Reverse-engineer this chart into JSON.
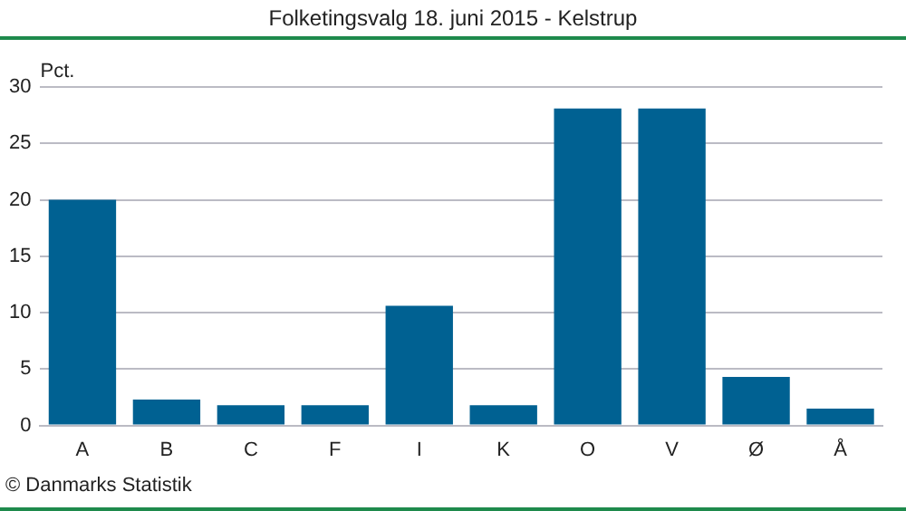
{
  "chart_data": {
    "type": "bar",
    "title": "Folketingsvalg 18. juni 2015 - Kelstrup",
    "ylabel": "Pct.",
    "categories": [
      "A",
      "B",
      "C",
      "F",
      "I",
      "K",
      "O",
      "V",
      "Ø",
      "Å"
    ],
    "values": [
      20,
      2.3,
      1.8,
      1.8,
      10.6,
      1.8,
      28.1,
      28.1,
      4.3,
      1.5
    ],
    "color": "#006192",
    "ylim": [
      0,
      30
    ],
    "yticks": [
      0,
      5,
      10,
      15,
      20,
      25,
      30
    ],
    "grid": "y",
    "legend": false,
    "annotations": [
      "© Danmarks Statistik"
    ]
  }
}
